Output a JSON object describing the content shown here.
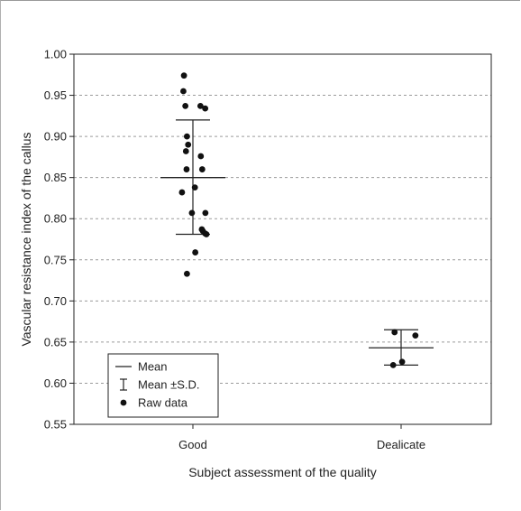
{
  "chart_data": {
    "type": "scatter",
    "xlabel": "Subject assessment of the quality",
    "ylabel": "Vascular resistance index of the callus",
    "categories": [
      "Good",
      "Dealicate"
    ],
    "ylim": [
      0.55,
      1.0
    ],
    "yticks": [
      0.55,
      0.6,
      0.65,
      0.7,
      0.75,
      0.8,
      0.85,
      0.9,
      0.95,
      1.0
    ],
    "ytick_labels": [
      "0.55",
      "0.60",
      "0.65",
      "0.70",
      "0.75",
      "0.80",
      "0.85",
      "0.90",
      "0.95",
      "1.00"
    ],
    "grid": "horizontal dashed",
    "legend_position": "bottom-left",
    "legend": [
      {
        "symbol": "line",
        "label": "Mean"
      },
      {
        "symbol": "errorbar",
        "label": "Mean ±S.D."
      },
      {
        "symbol": "dot",
        "label": "Raw data"
      }
    ],
    "groups": [
      {
        "category": "Good",
        "mean": 0.85,
        "sd_low": 0.781,
        "sd_high": 0.92,
        "raw": [
          {
            "jitter": -0.45,
            "y": 0.974
          },
          {
            "jitter": -0.48,
            "y": 0.955
          },
          {
            "jitter": -0.38,
            "y": 0.937
          },
          {
            "jitter": 0.38,
            "y": 0.937
          },
          {
            "jitter": 0.62,
            "y": 0.934
          },
          {
            "jitter": -0.24,
            "y": 0.89
          },
          {
            "jitter": -0.3,
            "y": 0.9
          },
          {
            "jitter": -0.35,
            "y": 0.882
          },
          {
            "jitter": 0.4,
            "y": 0.876
          },
          {
            "jitter": -0.32,
            "y": 0.86
          },
          {
            "jitter": 0.47,
            "y": 0.86
          },
          {
            "jitter": 0.1,
            "y": 0.838
          },
          {
            "jitter": -0.55,
            "y": 0.832
          },
          {
            "jitter": -0.05,
            "y": 0.807
          },
          {
            "jitter": 0.63,
            "y": 0.807
          },
          {
            "jitter": 0.45,
            "y": 0.787
          },
          {
            "jitter": 0.5,
            "y": 0.785
          },
          {
            "jitter": 0.62,
            "y": 0.782
          },
          {
            "jitter": 0.68,
            "y": 0.781
          },
          {
            "jitter": 0.12,
            "y": 0.759
          },
          {
            "jitter": -0.3,
            "y": 0.733
          }
        ]
      },
      {
        "category": "Dealicate",
        "mean": 0.643,
        "sd_low": 0.622,
        "sd_high": 0.665,
        "raw": [
          {
            "jitter": -0.33,
            "y": 0.662
          },
          {
            "jitter": 0.72,
            "y": 0.658
          },
          {
            "jitter": 0.05,
            "y": 0.626
          },
          {
            "jitter": -0.4,
            "y": 0.622
          }
        ]
      }
    ]
  }
}
